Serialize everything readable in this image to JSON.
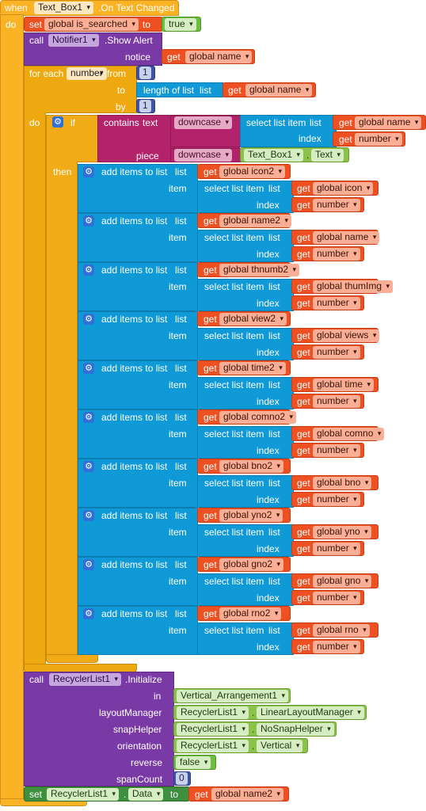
{
  "event": {
    "when": "when",
    "component": "Text_Box1",
    "event_name": ".On Text Changed",
    "do": "do"
  },
  "set_searched": {
    "set": "set",
    "var": "global is_searched",
    "to": "to",
    "value": "true"
  },
  "notifier": {
    "call": "call",
    "component": "Notifier1",
    "method": ".Show Alert",
    "notice": "notice",
    "get": "get",
    "var": "global name"
  },
  "foreach": {
    "label": "for each",
    "var": "number",
    "from": "from",
    "from_val": "1",
    "to": "to",
    "length_of_list": "length of list",
    "list": "list",
    "get": "get",
    "list_var": "global name",
    "by": "by",
    "by_val": "1"
  },
  "if_block": {
    "do": "do",
    "if": "if",
    "then": "then"
  },
  "contains": {
    "label": "contains",
    "text": "text",
    "piece": "piece",
    "downcase": "downcase",
    "select": "select list item",
    "list": "list",
    "index": "index",
    "get": "get",
    "list_var": "global name",
    "index_var": "number",
    "textbox": "Text_Box1",
    "text_prop": "Text"
  },
  "add_label": "add items to list",
  "list_label": "list",
  "item_label": "item",
  "select_label": "select list item",
  "index_label": "index",
  "get_label": "get",
  "number_var": "number",
  "adds": [
    {
      "target": "global icon2",
      "source": "global icon"
    },
    {
      "target": "global name2",
      "source": "global name"
    },
    {
      "target": "global thnumb2",
      "source": "global thumImg"
    },
    {
      "target": "global view2",
      "source": "global views"
    },
    {
      "target": "global time2",
      "source": "global time"
    },
    {
      "target": "global comno2",
      "source": "global comno"
    },
    {
      "target": "global bno2",
      "source": "global bno"
    },
    {
      "target": "global yno2",
      "source": "global yno"
    },
    {
      "target": "global gno2",
      "source": "global gno"
    },
    {
      "target": "global rno2",
      "source": "global rno"
    }
  ],
  "recycler_init": {
    "call": "call",
    "component": "RecyclerList1",
    "method": ".Initialize",
    "in": "in",
    "in_val": "Vertical_Arrangement1",
    "layoutManager": "layoutManager",
    "lm_comp": "RecyclerList1",
    "lm_val": "LinearLayoutManager",
    "snapHelper": "snapHelper",
    "sh_comp": "RecyclerList1",
    "sh_val": "NoSnapHelper",
    "orientation": "orientation",
    "or_comp": "RecyclerList1",
    "or_val": "Vertical",
    "reverse": "reverse",
    "reverse_val": "false",
    "spanCount": "spanCount",
    "span_val": "0"
  },
  "set_data": {
    "set": "set",
    "component": "RecyclerList1",
    "prop": "Data",
    "to": "to",
    "get": "get",
    "var": "global name2"
  }
}
